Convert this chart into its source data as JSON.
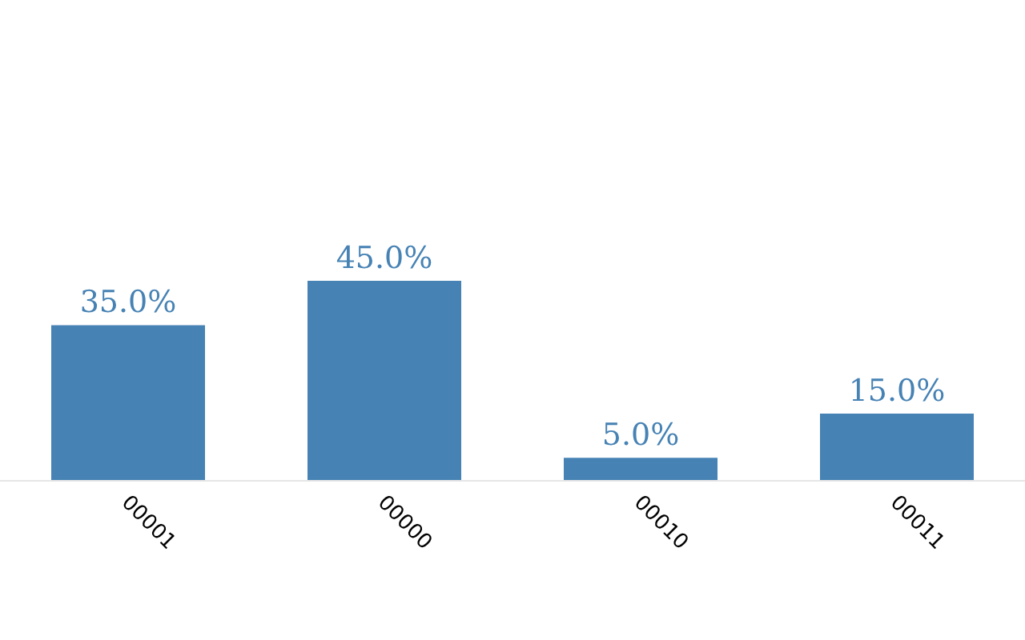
{
  "chart_data": {
    "type": "bar",
    "categories": [
      "00001",
      "00000",
      "00010",
      "00011"
    ],
    "values": [
      35,
      45,
      5,
      15
    ],
    "value_labels": [
      "35.0%",
      "45.0%",
      "5.0%",
      "15.0%"
    ],
    "color": "#4682b4",
    "tick_labels": "x"
  }
}
